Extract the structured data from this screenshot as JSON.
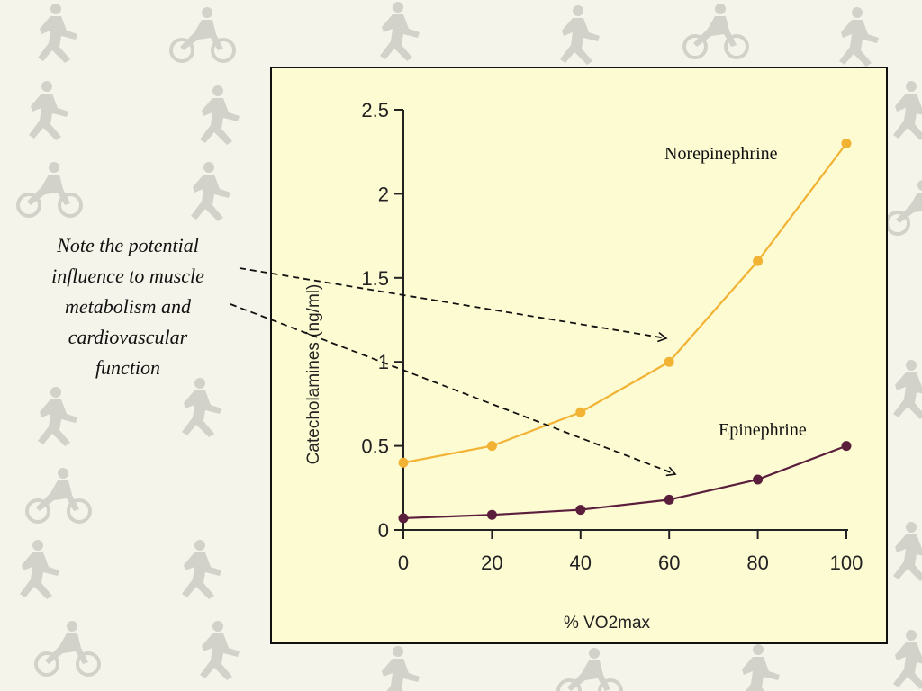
{
  "note": {
    "lines": [
      "Note the potential",
      "influence to muscle",
      "metabolism and",
      "cardiovascular",
      "function"
    ]
  },
  "colors": {
    "background": "#f4f4ea",
    "panel": "#fdfbd2",
    "norepinephrine": "#f2b233",
    "epinephrine": "#5a1d3c",
    "silhouettes": "#cfcfc6"
  },
  "icons": [
    "athlete-silhouette-icon"
  ],
  "chart_data": {
    "type": "line",
    "xlabel": "% VO2max",
    "ylabel": "Catecholamines (ng/ml)",
    "xlim": [
      0,
      100
    ],
    "ylim": [
      0,
      2.5
    ],
    "x_ticks": [
      "0",
      "20",
      "40",
      "60",
      "80",
      "100"
    ],
    "y_ticks": [
      "0",
      "0.5",
      "1",
      "1.5",
      "2",
      "2.5"
    ],
    "x": [
      0,
      20,
      40,
      60,
      80,
      100
    ],
    "grid": false,
    "series": [
      {
        "name": "Norepinephrine",
        "values": [
          0.4,
          0.5,
          0.7,
          1.0,
          1.6,
          2.3
        ],
        "color": "#f2b233"
      },
      {
        "name": "Epinephrine",
        "values": [
          0.07,
          0.09,
          0.12,
          0.18,
          0.3,
          0.5
        ],
        "color": "#5a1d3c"
      }
    ]
  }
}
